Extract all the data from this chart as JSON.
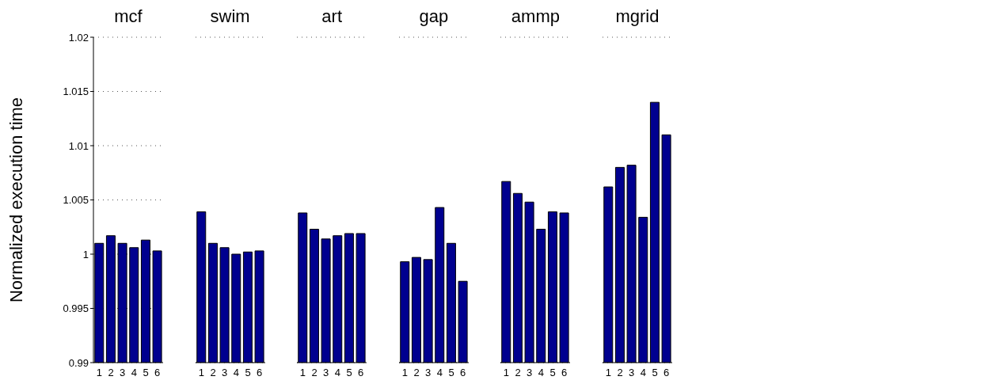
{
  "chart_data": [
    {
      "type": "bar",
      "title": "mcf",
      "ylabel": "Normalized execution time",
      "categories": [
        "1",
        "2",
        "3",
        "4",
        "5",
        "6"
      ],
      "values": [
        1.001,
        1.0017,
        1.001,
        1.0006,
        1.0013,
        1.0003
      ],
      "color": "#00008f",
      "ylim": [
        0.99,
        1.02
      ],
      "yticks": [
        0.99,
        0.995,
        1,
        1.005,
        1.01,
        1.015,
        1.02
      ],
      "grid": "y"
    },
    {
      "type": "bar",
      "title": "swim",
      "categories": [
        "1",
        "2",
        "3",
        "4",
        "5",
        "6"
      ],
      "values": [
        1.0039,
        1.001,
        1.0006,
        1.0,
        1.0002,
        1.0003
      ],
      "color": "#00008f",
      "ylim": [
        0.99,
        1.02
      ],
      "yticks": [
        0.99,
        0.995,
        1,
        1.005,
        1.01,
        1.015,
        1.02
      ],
      "grid": "y",
      "tick_labels": "x"
    },
    {
      "type": "bar",
      "title": "art",
      "categories": [
        "1",
        "2",
        "3",
        "4",
        "5",
        "6"
      ],
      "values": [
        1.0038,
        1.0023,
        1.0014,
        1.0017,
        1.0019,
        1.0019
      ],
      "color": "#00008f",
      "ylim": [
        0.99,
        1.02
      ],
      "yticks": [
        0.99,
        0.995,
        1,
        1.005,
        1.01,
        1.015,
        1.02
      ],
      "grid": "y",
      "tick_labels": "x"
    },
    {
      "type": "bar",
      "title": "gap",
      "categories": [
        "1",
        "2",
        "3",
        "4",
        "5",
        "6"
      ],
      "values": [
        0.9993,
        0.9997,
        0.9995,
        1.0043,
        1.001,
        0.9975
      ],
      "color": "#00008f",
      "ylim": [
        0.99,
        1.02
      ],
      "yticks": [
        0.99,
        0.995,
        1,
        1.005,
        1.01,
        1.015,
        1.02
      ],
      "grid": "y",
      "tick_labels": "x"
    },
    {
      "type": "bar",
      "title": "ammp",
      "categories": [
        "1",
        "2",
        "3",
        "4",
        "5",
        "6"
      ],
      "values": [
        1.0067,
        1.0056,
        1.0048,
        1.0023,
        1.0039,
        1.0038
      ],
      "color": "#00008f",
      "ylim": [
        0.99,
        1.02
      ],
      "yticks": [
        0.99,
        0.995,
        1,
        1.005,
        1.01,
        1.015,
        1.02
      ],
      "grid": "y",
      "tick_labels": "x"
    },
    {
      "type": "bar",
      "title": "mgrid",
      "categories": [
        "1",
        "2",
        "3",
        "4",
        "5",
        "6"
      ],
      "values": [
        1.0062,
        1.008,
        1.0082,
        1.0034,
        1.014,
        1.011
      ],
      "color": "#00008f",
      "ylim": [
        0.99,
        1.02
      ],
      "yticks": [
        0.99,
        0.995,
        1,
        1.005,
        1.01,
        1.015,
        1.02
      ],
      "grid": "y",
      "tick_labels": "x"
    }
  ]
}
